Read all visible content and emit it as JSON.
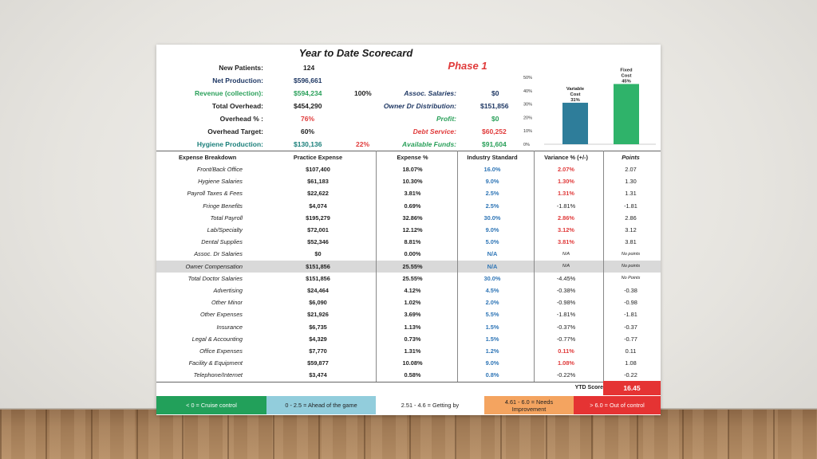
{
  "title": "Year to Date Scorecard",
  "phase": "Phase 1",
  "summary_left": [
    {
      "label": "New Patients:",
      "value": "124"
    },
    {
      "label": "Net Production:",
      "value": "$596,661"
    },
    {
      "label": "Revenue (collection):",
      "value": "$594,234",
      "extra": "100%"
    },
    {
      "label": "Total Overhead:",
      "value": "$454,290"
    },
    {
      "label": "Overhead % :",
      "value": "76%"
    },
    {
      "label": "Overhead Target:",
      "value": "60%"
    },
    {
      "label": "Hygiene Production:",
      "value": "$130,136",
      "extra": "22%"
    }
  ],
  "summary_right": [
    {
      "label": "Assoc. Salaries:",
      "value": "$0"
    },
    {
      "label": "Owner Dr Distribution:",
      "value": "$151,856"
    },
    {
      "label": "Profit:",
      "value": "$0"
    },
    {
      "label": "Debt Service:",
      "value": "$60,252"
    },
    {
      "label": "Available Funds:",
      "value": "$91,604"
    }
  ],
  "chart_data": {
    "type": "bar",
    "categories": [
      "Variable Cost",
      "Fixed Cost"
    ],
    "values": [
      31,
      45
    ],
    "value_labels": [
      "31%",
      "45%"
    ],
    "category_lines": [
      [
        "Variable",
        "Cost"
      ],
      [
        "Fixed",
        "Cost"
      ]
    ],
    "ylim": [
      0,
      50
    ],
    "yticks": [
      "0%",
      "10%",
      "20%",
      "30%",
      "40%",
      "50%"
    ],
    "colors": [
      "#2e7d9a",
      "#2fb36a"
    ]
  },
  "table": {
    "headers": [
      "Expense Breakdown",
      "Practice Expense",
      "Expense %",
      "Industry Standard",
      "Variance % (+/-)",
      "Points"
    ],
    "rows": [
      {
        "name": "Front/Back Office",
        "expense": "$107,400",
        "pct": "18.07%",
        "std": "16.0%",
        "var": "2.07%",
        "pts": "2.07"
      },
      {
        "name": "Hygiene Salaries",
        "expense": "$61,183",
        "pct": "10.30%",
        "std": "9.0%",
        "var": "1.30%",
        "pts": "1.30"
      },
      {
        "name": "Payroll Taxes & Fees",
        "expense": "$22,622",
        "pct": "3.81%",
        "std": "2.5%",
        "var": "1.31%",
        "pts": "1.31"
      },
      {
        "name": "Fringe Benefits",
        "expense": "$4,074",
        "pct": "0.69%",
        "std": "2.5%",
        "var": "-1.81%",
        "pts": "-1.81"
      },
      {
        "name": "Total Payroll",
        "expense": "$195,279",
        "pct": "32.86%",
        "std": "30.0%",
        "var": "2.86%",
        "pts": "2.86"
      },
      {
        "name": "Lab/Specialty",
        "expense": "$72,001",
        "pct": "12.12%",
        "std": "9.0%",
        "var": "3.12%",
        "pts": "3.12"
      },
      {
        "name": "Dental Supplies",
        "expense": "$52,346",
        "pct": "8.81%",
        "std": "5.0%",
        "var": "3.81%",
        "pts": "3.81"
      },
      {
        "name": "Assoc. Dr Salaries",
        "expense": "$0",
        "pct": "0.00%",
        "std": "N/A",
        "var": "N/A",
        "pts": "No points"
      },
      {
        "name": "Owner Compensation",
        "expense": "$151,856",
        "pct": "25.55%",
        "std": "N/A",
        "var": "N/A",
        "pts": "No points"
      },
      {
        "name": "Total Doctor Salaries",
        "expense": "$151,856",
        "pct": "25.55%",
        "std": "30.0%",
        "var": "-4.45%",
        "pts": "No Points"
      },
      {
        "name": "Advertising",
        "expense": "$24,464",
        "pct": "4.12%",
        "std": "4.5%",
        "var": "-0.38%",
        "pts": "-0.38"
      },
      {
        "name": "Other Minor",
        "expense": "$6,090",
        "pct": "1.02%",
        "std": "2.0%",
        "var": "-0.98%",
        "pts": "-0.98"
      },
      {
        "name": "Other Expenses",
        "expense": "$21,926",
        "pct": "3.69%",
        "std": "5.5%",
        "var": "-1.81%",
        "pts": "-1.81"
      },
      {
        "name": "Insurance",
        "expense": "$6,735",
        "pct": "1.13%",
        "std": "1.5%",
        "var": "-0.37%",
        "pts": "-0.37"
      },
      {
        "name": "Legal & Accounting",
        "expense": "$4,329",
        "pct": "0.73%",
        "std": "1.5%",
        "var": "-0.77%",
        "pts": "-0.77"
      },
      {
        "name": "Office Expenses",
        "expense": "$7,770",
        "pct": "1.31%",
        "std": "1.2%",
        "var": "0.11%",
        "pts": "0.11"
      },
      {
        "name": "Facility & Equipment",
        "expense": "$59,877",
        "pct": "10.08%",
        "std": "9.0%",
        "var": "1.08%",
        "pts": "1.08"
      },
      {
        "name": "Telephone/Internet",
        "expense": "$3,474",
        "pct": "0.58%",
        "std": "0.8%",
        "var": "-0.22%",
        "pts": "-0.22"
      }
    ]
  },
  "ytd_score": {
    "label": "YTD Score",
    "value": "16.45"
  },
  "legend": [
    {
      "text": "< 0 = Cruise control",
      "bg": "#22a05a",
      "fg": "#ffffff"
    },
    {
      "text": "0 - 2.5 = Ahead of the game",
      "bg": "#92cddc",
      "fg": "#1f1f1f"
    },
    {
      "text": "2.51 - 4.6 = Getting by",
      "bg": "#ffffff",
      "fg": "#1f1f1f"
    },
    {
      "text": "4.61 - 6.0 = Needs Improvement",
      "bg": "#f4a460",
      "fg": "#1f1f1f"
    },
    {
      "text": "> 6.0 = Out of control",
      "bg": "#e53333",
      "fg": "#ffffff"
    }
  ],
  "colors": {
    "red": "#e03a3a",
    "blue": "#2e75b6",
    "green": "#2aa05a",
    "navy": "#1f3864"
  }
}
